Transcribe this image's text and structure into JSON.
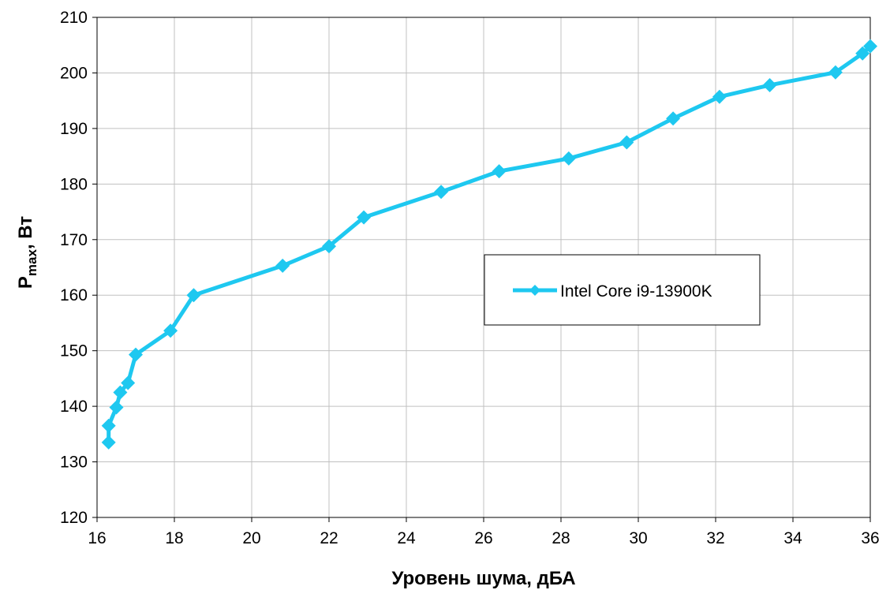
{
  "chart_data": {
    "type": "line",
    "title": "",
    "xlabel": "Уровень шума, дБА",
    "ylabel": "Pmax, Вт",
    "ylabel_main": "P",
    "ylabel_sub": "max",
    "ylabel_rest": ", Вт",
    "xlim": [
      16,
      36
    ],
    "ylim": [
      120,
      210
    ],
    "xticks": [
      16,
      18,
      20,
      22,
      24,
      26,
      28,
      30,
      32,
      34,
      36
    ],
    "yticks": [
      120,
      130,
      140,
      150,
      160,
      170,
      180,
      190,
      200,
      210
    ],
    "grid": true,
    "legend_position": "center-right",
    "series": [
      {
        "name": "Intel Core i9-13900K",
        "color": "#1ec8f0",
        "marker": "diamond",
        "x": [
          16.3,
          16.3,
          16.5,
          16.6,
          16.8,
          17.0,
          17.9,
          18.5,
          20.8,
          22.0,
          22.9,
          24.9,
          26.4,
          28.2,
          29.7,
          30.9,
          32.1,
          33.4,
          35.1,
          35.8,
          36.0
        ],
        "y": [
          133.5,
          136.5,
          139.8,
          142.5,
          144.2,
          149.3,
          153.6,
          160.0,
          165.3,
          168.8,
          174.0,
          178.6,
          182.3,
          184.6,
          187.5,
          191.8,
          195.7,
          197.8,
          200.1,
          203.5,
          204.8
        ]
      }
    ]
  }
}
